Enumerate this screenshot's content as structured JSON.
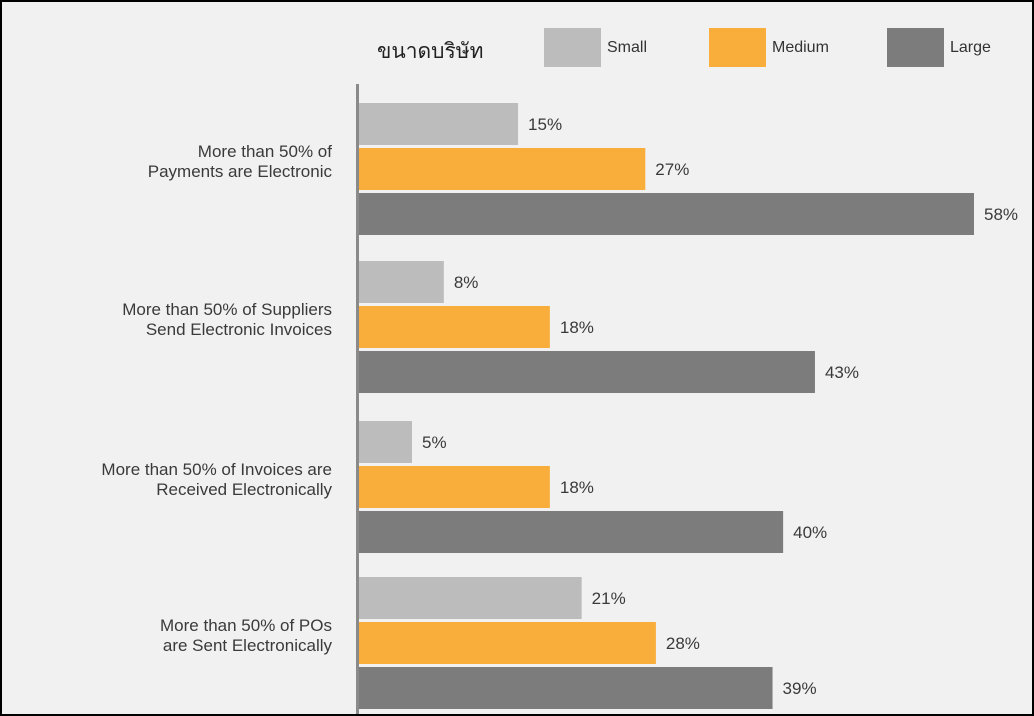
{
  "chart_data": {
    "type": "bar",
    "orientation": "horizontal",
    "title": "",
    "xlabel": "",
    "ylabel": "",
    "xlim": [
      0,
      58
    ],
    "grid": false,
    "legend": {
      "title": "ขนาดบริษัท",
      "placement": "top"
    },
    "categories": [
      [
        "More than 50% of",
        "Payments are Electronic"
      ],
      [
        "More than 50% of Suppliers",
        "Send Electronic Invoices"
      ],
      [
        "More than 50% of Invoices are",
        "Received Electronically"
      ],
      [
        "More than 50% of POs",
        "are Sent Electronically"
      ]
    ],
    "series": [
      {
        "name": "Small",
        "color": "#bdbcbc",
        "values": [
          15,
          8,
          5,
          21
        ],
        "labels": [
          "15%",
          "8%",
          "5%",
          "21%"
        ]
      },
      {
        "name": "Medium",
        "color": "#f9ae3b",
        "values": [
          27,
          18,
          18,
          28
        ],
        "labels": [
          "27%",
          "18%",
          "18%",
          "28%"
        ]
      },
      {
        "name": "Large",
        "color": "#7c7c7c",
        "values": [
          58,
          43,
          40,
          39
        ],
        "labels": [
          "58%",
          "43%",
          "40%",
          "39%"
        ]
      }
    ]
  }
}
